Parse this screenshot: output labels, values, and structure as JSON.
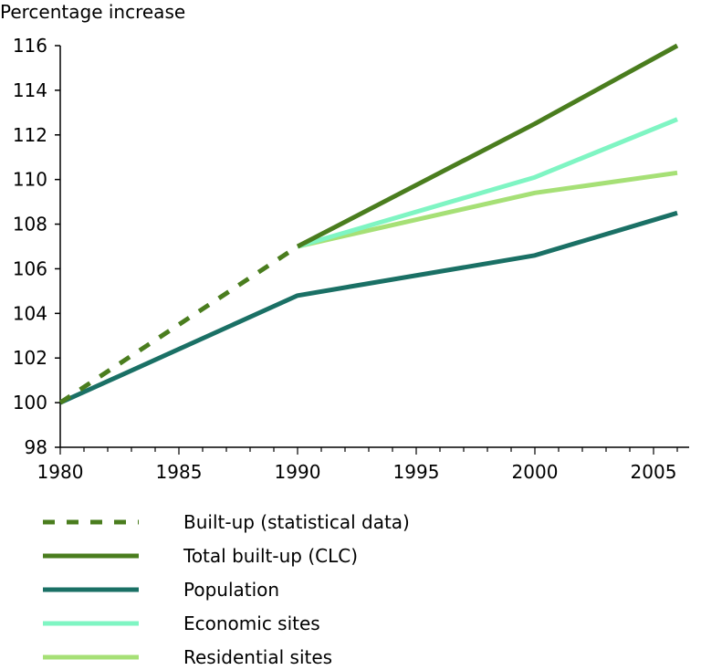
{
  "chart_data": {
    "type": "line",
    "title": "",
    "ylabel": "Percentage increase",
    "xlabel": "",
    "xlim": [
      1980,
      2006
    ],
    "ylim": [
      98,
      116
    ],
    "x_ticks": [
      1980,
      1985,
      1990,
      1995,
      2000,
      2005
    ],
    "y_ticks": [
      98,
      100,
      102,
      104,
      106,
      108,
      110,
      112,
      114,
      116
    ],
    "grid": false,
    "legend_position": "bottom",
    "series": [
      {
        "name": "Built-up (statistical data)",
        "color": "#4a7d1e",
        "style": "dashed",
        "x": [
          1980,
          1990
        ],
        "y": [
          100,
          107
        ]
      },
      {
        "name": "Total built-up (CLC)",
        "color": "#4a7d1e",
        "style": "solid",
        "x": [
          1990,
          2000,
          2006
        ],
        "y": [
          107,
          112.5,
          116
        ]
      },
      {
        "name": "Population",
        "color": "#1a7065",
        "style": "solid",
        "x": [
          1980,
          1990,
          2000,
          2006
        ],
        "y": [
          100,
          104.8,
          106.6,
          108.5
        ]
      },
      {
        "name": "Economic sites",
        "color": "#7ff5c3",
        "style": "solid",
        "x": [
          1990,
          2000,
          2006
        ],
        "y": [
          107,
          110.1,
          112.7
        ]
      },
      {
        "name": "Residential sites",
        "color": "#a6e076",
        "style": "solid",
        "x": [
          1990,
          2000,
          2006
        ],
        "y": [
          107,
          109.4,
          110.3
        ]
      }
    ]
  }
}
